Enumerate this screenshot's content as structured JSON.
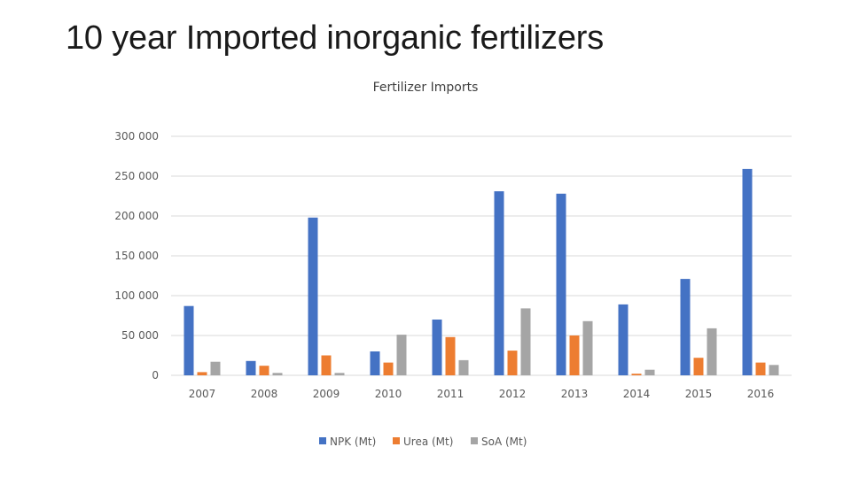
{
  "slide": {
    "title": "10 year Imported inorganic fertilizers"
  },
  "chart_data": {
    "type": "bar",
    "title": "Fertilizer Imports",
    "categories": [
      "2007",
      "2008",
      "2009",
      "2010",
      "2011",
      "2012",
      "2013",
      "2014",
      "2015",
      "2016"
    ],
    "series": [
      {
        "name": "NPK (Mt)",
        "color": "#4472c4",
        "values": [
          87000,
          18000,
          198000,
          30000,
          70000,
          231000,
          228000,
          89000,
          121000,
          259000
        ]
      },
      {
        "name": "Urea (Mt)",
        "color": "#ed7d31",
        "values": [
          4000,
          12000,
          25000,
          16000,
          48000,
          31000,
          50000,
          2000,
          22000,
          16000
        ]
      },
      {
        "name": "SoA (Mt)",
        "color": "#a5a5a5",
        "values": [
          17000,
          3000,
          3000,
          51000,
          19000,
          84000,
          68000,
          7000,
          59000,
          13000
        ]
      }
    ],
    "y_ticks": [
      "0",
      "50 000",
      "100 000",
      "150 000",
      "200 000",
      "250 000",
      "300 000"
    ],
    "y_tick_values": [
      0,
      50000,
      100000,
      150000,
      200000,
      250000,
      300000
    ],
    "ylim": [
      0,
      300000
    ],
    "xlabel": "",
    "ylabel": "",
    "grid": true,
    "legend_position": "bottom"
  }
}
